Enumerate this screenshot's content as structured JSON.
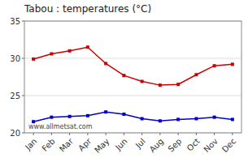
{
  "chart_data": {
    "type": "line",
    "title": "Tabou : temperatures (°C)",
    "categories": [
      "Jan",
      "Feb",
      "Mar",
      "Apr",
      "May",
      "Jun",
      "Jul",
      "Aug",
      "Sep",
      "Oct",
      "Nov",
      "Dec"
    ],
    "series": [
      {
        "color": "#cc0000",
        "marker": "square",
        "values": [
          29.9,
          30.6,
          31.0,
          31.5,
          29.3,
          27.7,
          26.9,
          26.4,
          26.5,
          27.8,
          29.0,
          29.2
        ]
      },
      {
        "color": "#0000cc",
        "marker": "square",
        "values": [
          21.5,
          22.1,
          22.2,
          22.3,
          22.8,
          22.5,
          21.9,
          21.6,
          21.8,
          21.9,
          22.1,
          21.8
        ]
      }
    ],
    "ylim": [
      20,
      35
    ],
    "yticks": [
      20,
      25,
      30,
      35
    ],
    "grid": true,
    "annotations": [
      "www.allmetsat.com"
    ]
  }
}
